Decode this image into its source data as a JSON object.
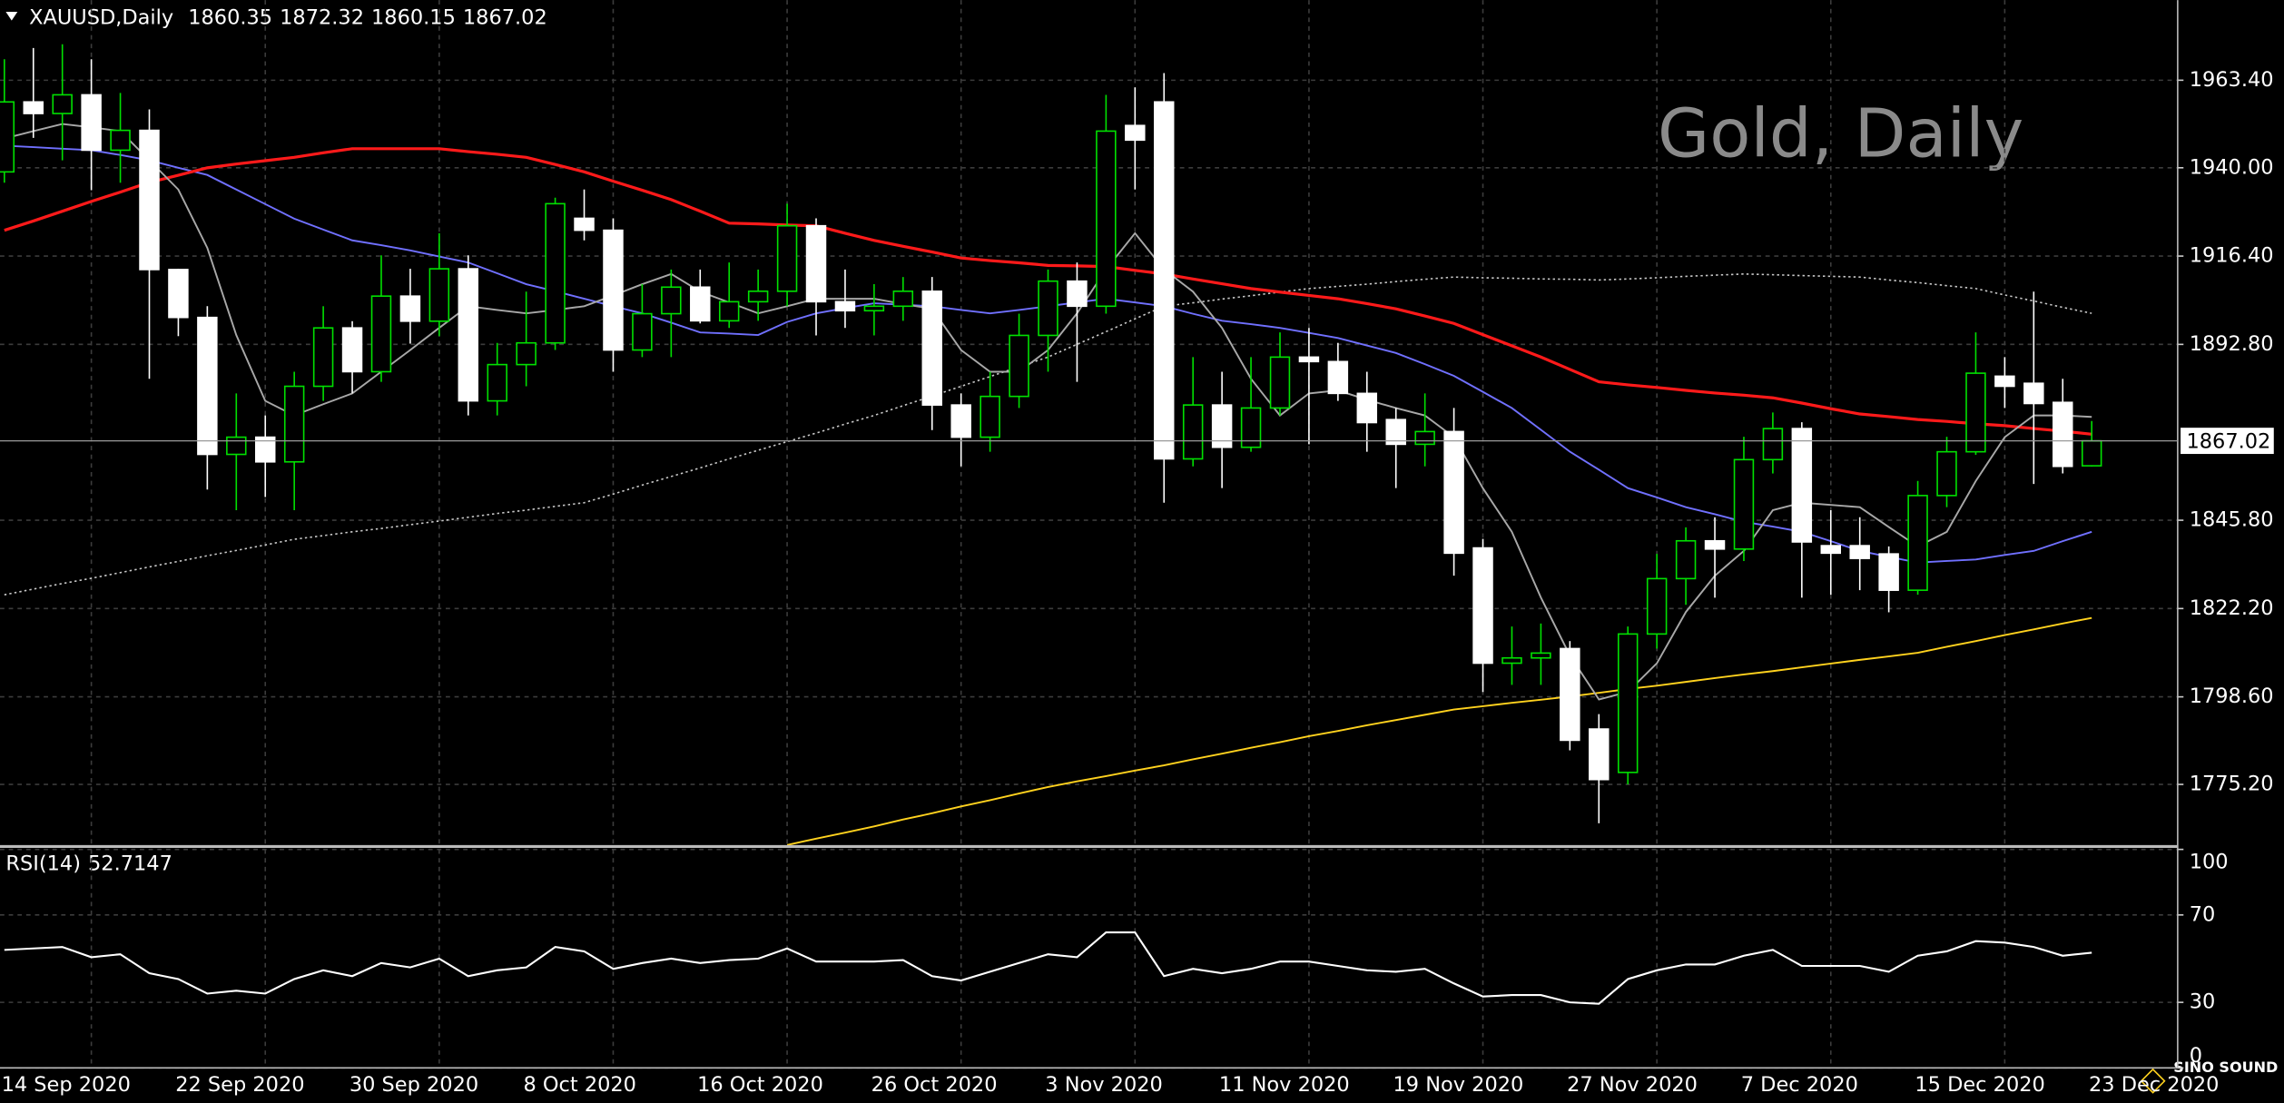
{
  "chart_data": {
    "type": "candlestick",
    "symbol": "XAUUSD,Daily",
    "title": "Gold, Daily",
    "watermark": "SINO SOUND",
    "up_color": "#00e000",
    "down_color": "#ffffff",
    "grid": true,
    "categories": [
      "14 Sep 2020",
      null,
      null,
      null,
      null,
      null,
      "22 Sep 2020",
      null,
      null,
      null,
      null,
      null,
      "30 Sep 2020",
      null,
      null,
      null,
      null,
      null,
      "8 Oct 2020",
      null,
      null,
      null,
      null,
      null,
      "16 Oct 2020",
      null,
      null,
      null,
      null,
      null,
      "26 Oct 2020",
      null,
      null,
      null,
      null,
      null,
      "3 Nov 2020",
      null,
      null,
      null,
      null,
      null,
      "11 Nov 2020",
      null,
      null,
      null,
      null,
      null,
      "19 Nov 2020",
      null,
      null,
      null,
      null,
      null,
      "27 Nov 2020",
      null,
      null,
      null,
      null,
      null,
      "7 Dec 2020",
      null,
      null,
      null,
      null,
      null,
      "15 Dec 2020",
      null,
      null,
      null,
      null,
      null,
      "23 Dec 2020"
    ],
    "open": [
      1938.9,
      1957.6,
      1954.5,
      1959.5,
      1944.7,
      1950,
      1912.8,
      1900,
      1863.4,
      1868,
      1861.4,
      1881.6,
      1897.2,
      1885.5,
      1905.7,
      1899,
      1913,
      1877.7,
      1887.4,
      1893.2,
      1926.5,
      1923.3,
      1891.3,
      1901,
      1908.1,
      1899.1,
      1904.2,
      1907,
      1924.5,
      1904.2,
      1901.8,
      1903,
      1907,
      1876.6,
      1868,
      1878.9,
      1895.2,
      1909.7,
      1903,
      1951.3,
      1957.6,
      1862.2,
      1876.6,
      1865.3,
      1875.8,
      1889.4,
      1888.2,
      1879.7,
      1872.7,
      1866.1,
      1869.5,
      1838.4,
      1807.6,
      1809,
      1811.5,
      1790,
      1778.4,
      1815.4,
      1830.2,
      1840.3,
      1838.1,
      1862,
      1870.3,
      1839,
      1839,
      1836.8,
      1827.1,
      1852.4,
      1864.1,
      1884.3,
      1882.4,
      1877.3,
      1860.35
    ],
    "high": [
      1969,
      1972,
      1973,
      1969,
      1960,
      1955.6,
      1913,
      1903,
      1879.7,
      1873.8,
      1885.5,
      1903,
      1899,
      1916.6,
      1913,
      1922.5,
      1916.6,
      1893.2,
      1906.9,
      1932,
      1934.2,
      1926.5,
      1908.9,
      1912.8,
      1912.8,
      1914.7,
      1912.8,
      1930.4,
      1926.5,
      1912.8,
      1908.9,
      1910.8,
      1910.8,
      1879.7,
      1885.5,
      1901,
      1912.8,
      1914.7,
      1959.5,
      1961.5,
      1965.3,
      1889.4,
      1885.5,
      1889.4,
      1896,
      1897.2,
      1893.2,
      1885.5,
      1875.8,
      1879.7,
      1875.8,
      1840.8,
      1817.4,
      1818.2,
      1813.5,
      1794,
      1817.4,
      1836.8,
      1843.9,
      1846.6,
      1868.1,
      1874.6,
      1872,
      1848.5,
      1846.6,
      1838.8,
      1856.3,
      1868.1,
      1896,
      1889.4,
      1906.9,
      1883.6,
      1872.32
    ],
    "low": [
      1936,
      1948,
      1942,
      1934,
      1936,
      1883.6,
      1895,
      1854,
      1848.5,
      1852,
      1848.5,
      1877.7,
      1879.7,
      1882.8,
      1893,
      1895,
      1873.8,
      1873.8,
      1881.6,
      1891.3,
      1920.6,
      1885.5,
      1889.4,
      1889.4,
      1898.4,
      1897.2,
      1899.1,
      1903,
      1895.2,
      1897.2,
      1895.2,
      1899.1,
      1869.9,
      1860.2,
      1864.1,
      1875.8,
      1885.5,
      1882.8,
      1901,
      1934.2,
      1850.5,
      1860.2,
      1854.4,
      1864.1,
      1873.8,
      1866.1,
      1877.7,
      1864.1,
      1854.4,
      1860.2,
      1831,
      1799.9,
      1801.8,
      1801.8,
      1784.3,
      1764.8,
      1775.2,
      1811.5,
      1823.2,
      1825.1,
      1834.9,
      1858.3,
      1825.1,
      1825.9,
      1827.1,
      1821.2,
      1825.9,
      1849.3,
      1863.3,
      1875.8,
      1855.5,
      1858.3,
      1860.15
    ],
    "close": [
      1957.6,
      1954.5,
      1959.5,
      1944.7,
      1950,
      1912.8,
      1900,
      1863.4,
      1868,
      1861.4,
      1881.6,
      1897.2,
      1885.5,
      1905.7,
      1899,
      1913,
      1877.7,
      1887.4,
      1893.2,
      1930.4,
      1923.3,
      1891.3,
      1901,
      1908.1,
      1899.1,
      1904.2,
      1907,
      1924.5,
      1904.2,
      1901.8,
      1903,
      1907,
      1876.6,
      1868,
      1878.9,
      1895.2,
      1909.7,
      1903,
      1949.8,
      1947.4,
      1862.2,
      1876.6,
      1865.3,
      1875.8,
      1889.4,
      1888.2,
      1879.7,
      1871.9,
      1866.1,
      1869.5,
      1837,
      1807.6,
      1809,
      1810.3,
      1787,
      1776.5,
      1815.4,
      1830.2,
      1840.3,
      1838.1,
      1862,
      1870.3,
      1840,
      1837,
      1835.6,
      1827.1,
      1852.4,
      1864.1,
      1885.1,
      1881.6,
      1877,
      1860.2,
      1867.02
    ],
    "ylim": [
      1759.0,
      1984.8
    ],
    "yticks": [
      {
        "value": 1775.2,
        "label": "1775.20"
      },
      {
        "value": 1798.6,
        "label": "1798.60"
      },
      {
        "value": 1822.2,
        "label": "1822.20"
      },
      {
        "value": 1845.8,
        "label": "1845.80"
      },
      {
        "value": 1892.8,
        "label": "1892.80"
      },
      {
        "value": 1916.4,
        "label": "1916.40"
      },
      {
        "value": 1940.0,
        "label": "1940.00"
      },
      {
        "value": 1963.4,
        "label": "1963.40"
      }
    ],
    "series": [
      {
        "color": "#c8c8c8",
        "style": "dotted",
        "values": [
          1825.9,
          1827.4,
          1828.9,
          1830.3,
          1831.8,
          1833.3,
          1834.8,
          1836.3,
          1837.7,
          1839.2,
          1840.7,
          1841.7,
          1842.7,
          1843.6,
          1844.6,
          1845.6,
          1846.6,
          1847.6,
          1848.5,
          1849.5,
          1850.5,
          1852.8,
          1855.2,
          1857.5,
          1859.8,
          1862.2,
          1864.5,
          1866.8,
          1869.1,
          1871.5,
          1873.8,
          1876.4,
          1879,
          1881.6,
          1884.2,
          1886.8,
          1889.4,
          1892.8,
          1896.2,
          1899.6,
          1903,
          1903.9,
          1904.9,
          1905.8,
          1906.8,
          1907.7,
          1908.3,
          1908.9,
          1909.6,
          1910.2,
          1910.8,
          1910.6,
          1910.5,
          1910.3,
          1910.2,
          1910,
          1910.3,
          1910.6,
          1911,
          1911.3,
          1911.6,
          1911.4,
          1911.2,
          1911,
          1910.8,
          1910,
          1909.3,
          1908.5,
          1907.7,
          1906,
          1904.4,
          1902.7,
          1901.1
        ]
      },
      {
        "color": "#ffd21e",
        "values": [
          null,
          null,
          null,
          null,
          null,
          null,
          null,
          null,
          null,
          null,
          null,
          null,
          null,
          null,
          null,
          null,
          null,
          null,
          null,
          null,
          null,
          null,
          null,
          null,
          null,
          null,
          null,
          1759,
          1760.7,
          1762.3,
          1764,
          1765.8,
          1767.5,
          1769.3,
          1771,
          1772.8,
          1774.5,
          1776,
          1777.4,
          1778.9,
          1780.3,
          1781.9,
          1783.4,
          1785,
          1786.5,
          1788.1,
          1789.5,
          1791,
          1792.4,
          1793.8,
          1795.2,
          1796.1,
          1797,
          1797.8,
          1798.7,
          1799.7,
          1800.7,
          1801.6,
          1802.6,
          1803.6,
          1804.6,
          1805.5,
          1806.5,
          1807.5,
          1808.5,
          1809.4,
          1810.4,
          1812,
          1813.5,
          1815.1,
          1816.6,
          1818.2,
          1819.7
        ]
      },
      {
        "color": "#7070ff",
        "values": [
          1945.9,
          1945.5,
          1945.1,
          1944.7,
          1943.4,
          1942,
          1940,
          1938.1,
          1934.2,
          1930.3,
          1926.4,
          1923.5,
          1920.6,
          1919.3,
          1917.9,
          1916.3,
          1914.7,
          1911.8,
          1908.9,
          1907,
          1905,
          1903,
          1901.1,
          1898.6,
          1896,
          1895.7,
          1895.3,
          1898.8,
          1901.1,
          1902.5,
          1903.8,
          1903.4,
          1903,
          1902,
          1901.1,
          1902,
          1903,
          1904,
          1905,
          1904,
          1903,
          1901,
          1899.1,
          1898.2,
          1897.2,
          1895.9,
          1894.5,
          1892.5,
          1890.5,
          1887.5,
          1884.4,
          1880.1,
          1875.8,
          1870,
          1864.1,
          1859.3,
          1854.4,
          1851.9,
          1849.3,
          1847.4,
          1845.4,
          1844.1,
          1842.7,
          1840.2,
          1837.6,
          1836,
          1834.5,
          1834.9,
          1835.3,
          1836.5,
          1837.6,
          1840.2,
          1842.7
        ]
      },
      {
        "color": "#ff1a1a",
        "values": [
          1923.3,
          1925.8,
          1928.4,
          1931,
          1933.5,
          1936.1,
          1938,
          1940,
          1941,
          1941.9,
          1942.8,
          1944,
          1945.1,
          1945.1,
          1945.1,
          1945.1,
          1944.3,
          1943.6,
          1942.8,
          1940.9,
          1938.9,
          1936.4,
          1934,
          1931.5,
          1928.4,
          1925.2,
          1925,
          1924.7,
          1924.5,
          1922.5,
          1920.6,
          1919,
          1917.5,
          1915.9,
          1915.2,
          1914.6,
          1913.9,
          1913.8,
          1913.6,
          1912.6,
          1911.6,
          1910.3,
          1909,
          1907.7,
          1906.8,
          1905.9,
          1905,
          1903.7,
          1902.3,
          1900.4,
          1898.4,
          1895.4,
          1892.4,
          1889.4,
          1886.1,
          1882.8,
          1882,
          1881.3,
          1880.5,
          1879.8,
          1879.2,
          1878.5,
          1877.1,
          1875.6,
          1874.2,
          1873.5,
          1872.7,
          1872.2,
          1871.6,
          1871.1,
          1870.3,
          1869.6,
          1868.8
        ]
      },
      {
        "color": "#a8a8a8",
        "values": [
          1947.8,
          1949.8,
          1951.7,
          1950.8,
          1949.8,
          1942,
          1934.2,
          1918.6,
          1895.3,
          1877.7,
          1873.8,
          1876.8,
          1879.7,
          1885.5,
          1891.3,
          1897.2,
          1903,
          1902,
          1901.1,
          1902,
          1903,
          1905.9,
          1908.9,
          1911.6,
          1906.9,
          1904,
          1901.1,
          1903,
          1905,
          1905,
          1905,
          1903.6,
          1902.3,
          1891.3,
          1885.5,
          1885.5,
          1891.3,
          1901.1,
          1912.8,
          1922.5,
          1912.8,
          1906.9,
          1897.2,
          1883.6,
          1873.8,
          1879.7,
          1880.5,
          1878,
          1875.8,
          1873.8,
          1868,
          1854.4,
          1842.7,
          1825.2,
          1809.6,
          1797.9,
          1799.9,
          1807.6,
          1821.3,
          1831,
          1837.6,
          1848.5,
          1850.5,
          1849.9,
          1849.3,
          1844,
          1838.8,
          1842.7,
          1856.3,
          1868,
          1873.8,
          1873.8,
          1873.4
        ]
      }
    ],
    "indicator": {
      "label": "RSI(14)",
      "color": "#ffffff",
      "ylim": [
        0,
        100
      ],
      "yticks": [
        0,
        30,
        70,
        100
      ],
      "values": [
        54,
        54.7,
        55.3,
        50.7,
        52,
        43.3,
        40.7,
        34,
        35.3,
        34,
        40.7,
        44.7,
        42,
        48,
        46,
        50,
        42,
        44.7,
        46,
        55.3,
        53.3,
        45.3,
        48,
        50,
        48,
        49.3,
        50,
        54.7,
        48.7,
        48.7,
        48.7,
        49.3,
        42,
        40,
        44,
        48,
        52,
        50.7,
        62,
        62,
        42,
        45.3,
        43.3,
        45.3,
        48.7,
        48.7,
        46.7,
        44.7,
        44,
        45.3,
        38.7,
        32.7,
        33.3,
        33.3,
        30,
        29.3,
        40.7,
        44.7,
        47.3,
        47.3,
        51.3,
        54,
        46.7,
        46.7,
        46.7,
        44,
        51.3,
        53.3,
        58,
        57.3,
        55.3,
        51.3,
        52.7147
      ]
    }
  }
}
